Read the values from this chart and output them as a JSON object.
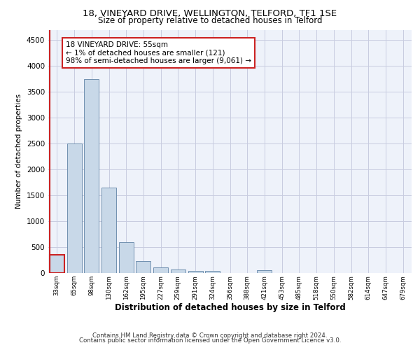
{
  "title1": "18, VINEYARD DRIVE, WELLINGTON, TELFORD, TF1 1SE",
  "title2": "Size of property relative to detached houses in Telford",
  "xlabel": "Distribution of detached houses by size in Telford",
  "ylabel": "Number of detached properties",
  "categories": [
    "33sqm",
    "65sqm",
    "98sqm",
    "130sqm",
    "162sqm",
    "195sqm",
    "227sqm",
    "259sqm",
    "291sqm",
    "324sqm",
    "356sqm",
    "388sqm",
    "421sqm",
    "453sqm",
    "485sqm",
    "518sqm",
    "550sqm",
    "582sqm",
    "614sqm",
    "647sqm",
    "679sqm"
  ],
  "values": [
    350,
    2500,
    3750,
    1650,
    600,
    230,
    110,
    70,
    45,
    45,
    0,
    0,
    60,
    0,
    0,
    0,
    0,
    0,
    0,
    0,
    0
  ],
  "bar_color": "#c8d8e8",
  "bar_edge_color": "#7090b0",
  "highlight_bar_index": 0,
  "highlight_color": "#cc2222",
  "annotation_line1": "18 VINEYARD DRIVE: 55sqm",
  "annotation_line2": "← 1% of detached houses are smaller (121)",
  "annotation_line3": "98% of semi-detached houses are larger (9,061) →",
  "annotation_box_color": "#ffffff",
  "annotation_box_edge": "#cc2222",
  "ylim": [
    0,
    4700
  ],
  "yticks": [
    0,
    500,
    1000,
    1500,
    2000,
    2500,
    3000,
    3500,
    4000,
    4500
  ],
  "bg_color": "#eef2fa",
  "grid_color": "#c8cce0",
  "footer1": "Contains HM Land Registry data © Crown copyright and database right 2024.",
  "footer2": "Contains public sector information licensed under the Open Government Licence v3.0."
}
